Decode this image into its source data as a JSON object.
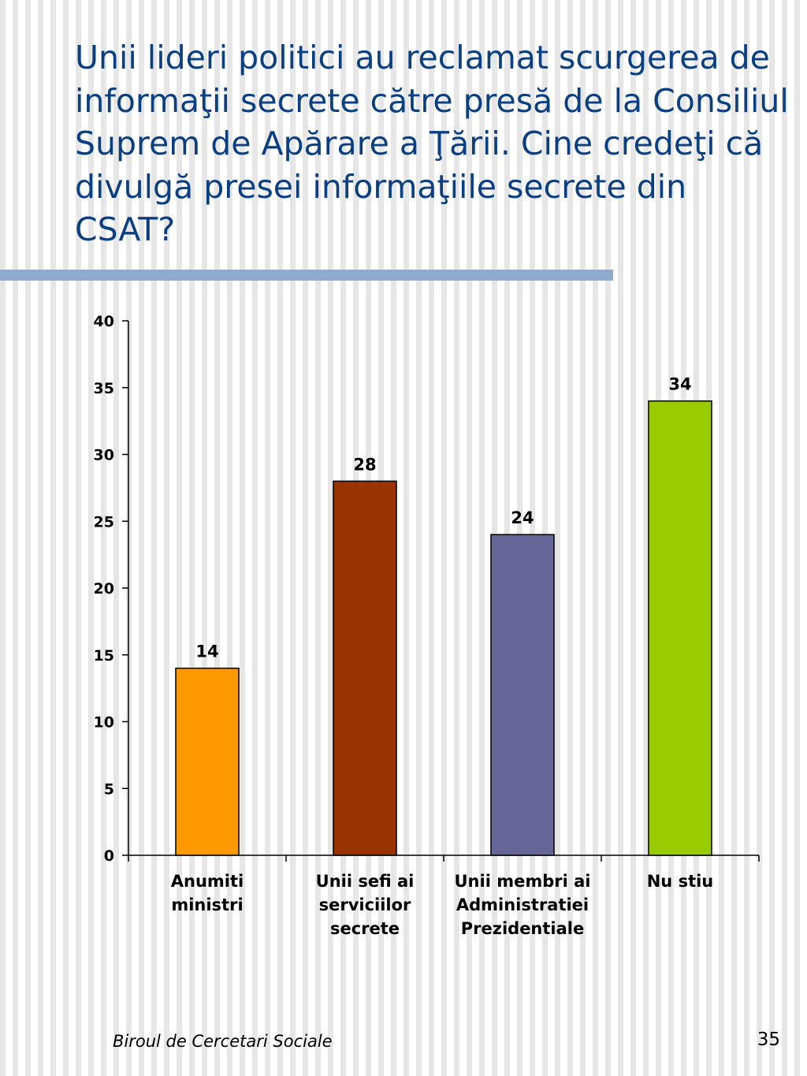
{
  "slide": {
    "title": "Unii lideri politici au reclamat scurgerea de informaţii secrete către presă de la Consiliul Suprem de Apărare a Ţării. Cine credeţi că divulgă presei informaţiile secrete din CSAT?",
    "footer": "Biroul de Cercetari Sociale",
    "page_number": "35"
  },
  "chart_data": {
    "type": "bar",
    "title": "",
    "xlabel": "",
    "ylabel": "",
    "categories": [
      [
        "Anumiti",
        "ministri"
      ],
      [
        "Unii sefi ai",
        "serviciilor",
        "secrete"
      ],
      [
        "Unii membri ai",
        "Administratiei",
        "Prezidentiale"
      ],
      [
        "Nu stiu"
      ]
    ],
    "values": [
      14,
      28,
      24,
      34
    ],
    "data_labels": [
      "14",
      "28",
      "24",
      "34"
    ],
    "colors": [
      "#ff9900",
      "#993300",
      "#666699",
      "#99cc00"
    ],
    "ylim": [
      0,
      40
    ],
    "yticks": [
      0,
      5,
      10,
      15,
      20,
      25,
      30,
      35,
      40
    ],
    "ytick_labels": [
      "0",
      "5",
      "10",
      "15",
      "20",
      "25",
      "30",
      "35",
      "40"
    ],
    "grid": false,
    "legend": false
  }
}
